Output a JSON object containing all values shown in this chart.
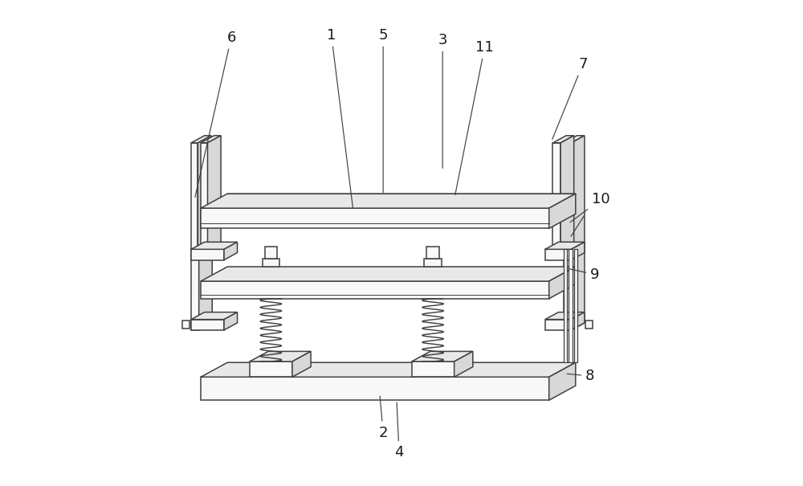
{
  "bg_color": "#ffffff",
  "lc": "#404040",
  "lw": 1.1,
  "fig_w": 10.0,
  "fig_h": 6.05,
  "dpi": 100,
  "ox": 0.055,
  "oy": 0.03,
  "fc_light": "#f8f8f8",
  "fc_mid": "#e8e8e8",
  "fc_dark": "#d8d8d8",
  "label_fs": 13,
  "label_color": "#1a1a1a"
}
